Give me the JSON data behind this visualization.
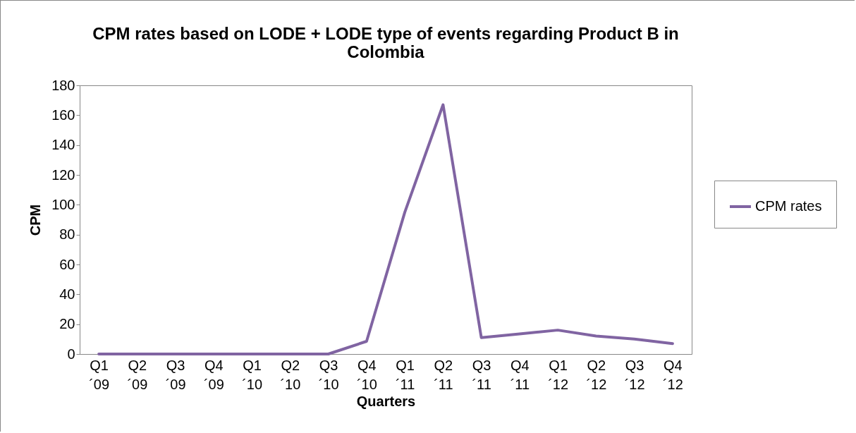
{
  "chart_data": {
    "type": "line",
    "title": "CPM rates based on LODE + LODE type of events regarding Product B in Colombia",
    "xlabel": "Quarters",
    "ylabel": "CPM",
    "categories": [
      "Q1 ´09",
      "Q2 ´09",
      "Q3 ´09",
      "Q4 ´09",
      "Q1 ´10",
      "Q2 ´10",
      "Q3 ´10",
      "Q4 ´10",
      "Q1 ´11",
      "Q2 ´11",
      "Q3 ´11",
      "Q4 ´11",
      "Q1 ´12",
      "Q2 ´12",
      "Q3 ´12",
      "Q4 ´12"
    ],
    "series": [
      {
        "name": "CPM rates",
        "color": "#8064a2",
        "values": [
          0,
          0,
          0,
          0,
          0,
          0,
          0,
          8.5,
          95,
          167,
          11,
          13.5,
          16,
          12,
          10,
          7
        ]
      }
    ],
    "ylim": [
      0,
      180
    ],
    "yticks": [
      0,
      20,
      40,
      60,
      80,
      100,
      120,
      140,
      160,
      180
    ],
    "grid": false,
    "legend": "right",
    "marker": "none",
    "line_style": "solid"
  }
}
